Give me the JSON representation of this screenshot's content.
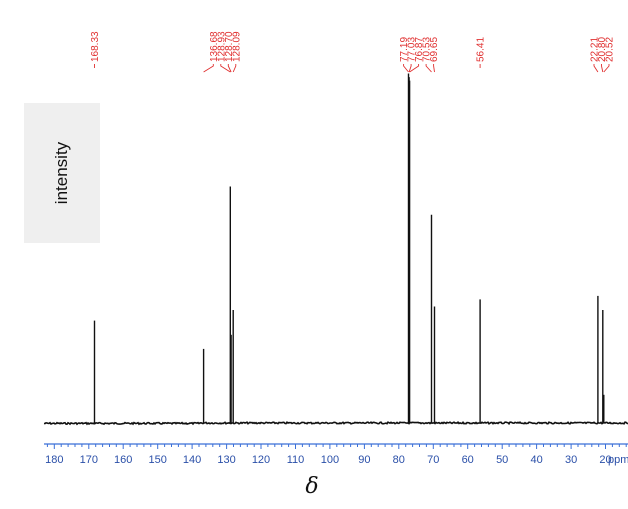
{
  "chart_data": {
    "type": "line",
    "title": "",
    "xlabel": "δ",
    "ylabel": "intensity",
    "x_unit_label": "ppm",
    "xlim": [
      183,
      10
    ],
    "x_reversed": true,
    "x_ticks": [
      180,
      170,
      160,
      150,
      140,
      130,
      120,
      110,
      100,
      90,
      80,
      70,
      60,
      50,
      40,
      30,
      20
    ],
    "ylim": [
      0,
      1
    ],
    "grid": false,
    "peaks": [
      {
        "ppm": 168.33,
        "intensity": 0.29
      },
      {
        "ppm": 136.68,
        "intensity": 0.21
      },
      {
        "ppm": 128.93,
        "intensity": 0.67
      },
      {
        "ppm": 128.7,
        "intensity": 0.25
      },
      {
        "ppm": 128.09,
        "intensity": 0.32
      },
      {
        "ppm": 77.19,
        "intensity": 0.99
      },
      {
        "ppm": 77.03,
        "intensity": 0.98
      },
      {
        "ppm": 76.87,
        "intensity": 0.97
      },
      {
        "ppm": 70.53,
        "intensity": 0.59
      },
      {
        "ppm": 69.65,
        "intensity": 0.33
      },
      {
        "ppm": 56.41,
        "intensity": 0.35
      },
      {
        "ppm": 22.21,
        "intensity": 0.36
      },
      {
        "ppm": 20.8,
        "intensity": 0.32
      },
      {
        "ppm": 20.52,
        "intensity": 0.08
      }
    ],
    "peak_label_groups": [
      {
        "labels": [
          "168.33"
        ]
      },
      {
        "labels": [
          "136.68",
          "128.93",
          "128.70",
          "128.09"
        ]
      },
      {
        "labels": [
          "77.19",
          "77.03",
          "76.87",
          "70.53",
          "69.65"
        ]
      },
      {
        "labels": [
          "56.41"
        ]
      },
      {
        "labels": [
          "22.21",
          "20.80",
          "20.52"
        ]
      }
    ],
    "colors": {
      "peak_labels": "#e03030",
      "axis": "#3a6fd8",
      "tick_labels": "#2a4fa8",
      "trace": "#111111"
    }
  }
}
